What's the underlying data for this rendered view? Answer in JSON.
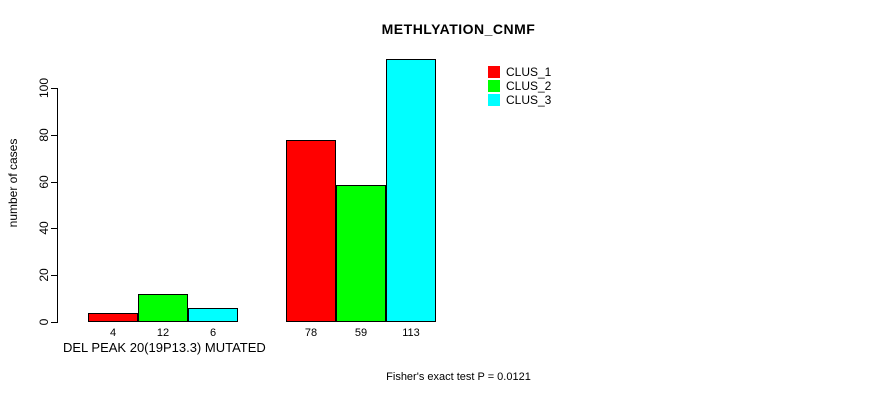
{
  "title": "METHLYATION_CNMF",
  "y_axis": {
    "label": "number of cases",
    "ticks": [
      0,
      20,
      40,
      60,
      80,
      100
    ]
  },
  "x_axis": {
    "group_labels": [
      "DEL PEAK 20(19P13.3) MUTATED",
      ""
    ]
  },
  "legend": {
    "items": [
      {
        "label": "CLUS_1",
        "color": "#ff0000"
      },
      {
        "label": "CLUS_2",
        "color": "#00ff00"
      },
      {
        "label": "CLUS_3",
        "color": "#00ffff"
      }
    ]
  },
  "footer": "Fisher's exact test P = 0.0121",
  "chart_data": {
    "type": "bar",
    "title": "METHLYATION_CNMF",
    "ylabel": "number of cases",
    "xlabel": "",
    "categories": [
      "DEL PEAK 20(19P13.3) MUTATED",
      ""
    ],
    "series": [
      {
        "name": "CLUS_1",
        "color": "#ff0000",
        "values": [
          4,
          78
        ]
      },
      {
        "name": "CLUS_2",
        "color": "#00ff00",
        "values": [
          12,
          59
        ]
      },
      {
        "name": "CLUS_3",
        "color": "#00ffff",
        "values": [
          6,
          113
        ]
      }
    ],
    "bar_value_labels": [
      [
        4,
        12,
        6
      ],
      [
        78,
        59,
        113
      ]
    ],
    "yticks": [
      0,
      20,
      40,
      60,
      80,
      100
    ],
    "ylim": [
      0,
      117
    ],
    "grid": false,
    "legend_position": "top-right",
    "annotation": "Fisher's exact test P = 0.0121"
  }
}
